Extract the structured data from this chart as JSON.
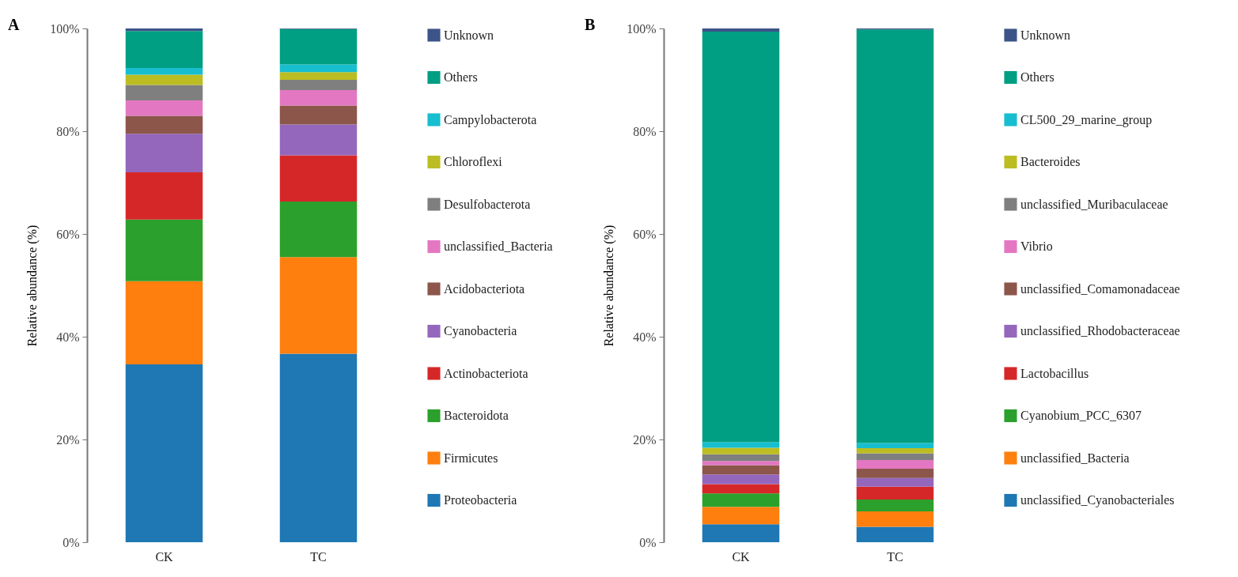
{
  "chart_data": [
    {
      "type": "bar",
      "title": "A",
      "ylabel": "Relative abundance (%)",
      "categories": [
        "CK",
        "TC"
      ],
      "stacked": true,
      "legend": "right",
      "ylim": [
        0,
        100
      ],
      "yticks": [
        {
          "value": 0,
          "label": "0%"
        },
        {
          "value": 20,
          "label": "20%"
        },
        {
          "value": 40,
          "label": "40%"
        },
        {
          "value": 60,
          "label": "60%"
        },
        {
          "value": 80,
          "label": "80%"
        },
        {
          "value": 100,
          "label": "100%"
        }
      ],
      "series": [
        {
          "name": "Proteobacteria",
          "color": "#1f77b4",
          "values": [
            34.6,
            36.7
          ]
        },
        {
          "name": "Firmicutes",
          "color": "#ff7f0e",
          "values": [
            16.2,
            18.8
          ]
        },
        {
          "name": "Bacteroidota",
          "color": "#2ca02c",
          "values": [
            12.0,
            10.8
          ]
        },
        {
          "name": "Actinobacteriota",
          "color": "#d62728",
          "values": [
            9.2,
            9.0
          ]
        },
        {
          "name": "Cyanobacteria",
          "color": "#9467bd",
          "values": [
            7.5,
            6.0
          ]
        },
        {
          "name": "Acidobacteriota",
          "color": "#8c564b",
          "values": [
            3.5,
            3.7
          ]
        },
        {
          "name": "unclassified_Bacteria",
          "color": "#e377c2",
          "values": [
            3.0,
            3.0
          ]
        },
        {
          "name": "Desulfobacterota",
          "color": "#7f7f7f",
          "values": [
            3.0,
            2.0
          ]
        },
        {
          "name": "Chloroflexi",
          "color": "#bcbd22",
          "values": [
            2.0,
            1.5
          ]
        },
        {
          "name": "Campylobacterota",
          "color": "#17becf",
          "values": [
            1.3,
            1.5
          ]
        },
        {
          "name": "Others",
          "color": "#009e82",
          "values": [
            7.2,
            6.9
          ]
        },
        {
          "name": "Unknown",
          "color": "#3c5488",
          "values": [
            0.5,
            0.1
          ]
        }
      ]
    },
    {
      "type": "bar",
      "title": "B",
      "ylabel": "Relative abundance (%)",
      "categories": [
        "CK",
        "TC"
      ],
      "stacked": true,
      "legend": "right",
      "ylim": [
        0,
        100
      ],
      "yticks": [
        {
          "value": 0,
          "label": "0%"
        },
        {
          "value": 20,
          "label": "20%"
        },
        {
          "value": 40,
          "label": "40%"
        },
        {
          "value": 60,
          "label": "60%"
        },
        {
          "value": 80,
          "label": "80%"
        },
        {
          "value": 100,
          "label": "100%"
        }
      ],
      "series": [
        {
          "name": "unclassified_Cyanobacteriales",
          "color": "#1f77b4",
          "values": [
            3.5,
            3.0
          ]
        },
        {
          "name": "unclassified_Bacteria",
          "color": "#ff7f0e",
          "values": [
            3.4,
            3.0
          ]
        },
        {
          "name": "Cyanobium_PCC_6307",
          "color": "#2ca02c",
          "values": [
            2.6,
            2.3
          ]
        },
        {
          "name": "Lactobacillus",
          "color": "#d62728",
          "values": [
            1.8,
            2.5
          ]
        },
        {
          "name": "unclassified_Rhodobacteraceae",
          "color": "#9467bd",
          "values": [
            1.9,
            1.7
          ]
        },
        {
          "name": "unclassified_Comamonadaceae",
          "color": "#8c564b",
          "values": [
            1.8,
            1.8
          ]
        },
        {
          "name": "Vibrio",
          "color": "#e377c2",
          "values": [
            0.8,
            1.7
          ]
        },
        {
          "name": "unclassified_Muribaculaceae",
          "color": "#7f7f7f",
          "values": [
            1.3,
            1.3
          ]
        },
        {
          "name": "Bacteroides",
          "color": "#bcbd22",
          "values": [
            1.3,
            1.0
          ]
        },
        {
          "name": "CL500_29_marine_group",
          "color": "#17becf",
          "values": [
            1.1,
            1.0
          ]
        },
        {
          "name": "Others",
          "color": "#009e82",
          "values": [
            79.9,
            80.5
          ]
        },
        {
          "name": "Unknown",
          "color": "#3c5488",
          "values": [
            0.6,
            0.2
          ]
        }
      ]
    }
  ]
}
